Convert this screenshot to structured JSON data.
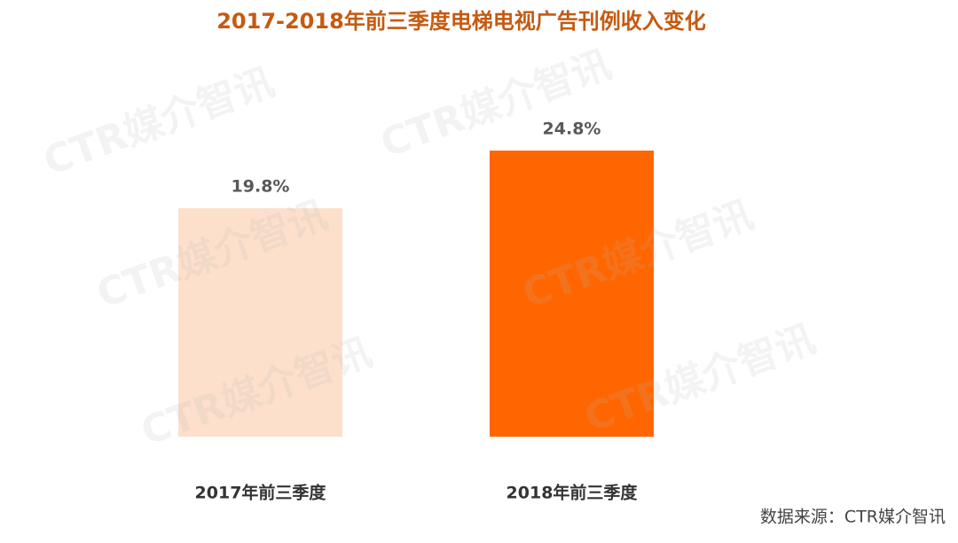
{
  "chart_data": {
    "type": "bar",
    "title": "2017-2018年前三季度电梯电视广告刊例收入变化",
    "categories": [
      "2017年前三季度",
      "2018年前三季度"
    ],
    "values": [
      19.8,
      24.8
    ],
    "value_labels": [
      "19.8%",
      "24.8%"
    ],
    "colors": [
      "#fde0cc",
      "#ff6600"
    ],
    "source": "数据来源：CTR媒介智讯",
    "watermark": "CTR媒介智讯"
  }
}
